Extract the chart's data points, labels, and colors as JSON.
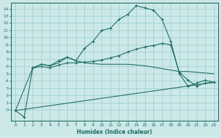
{
  "xlabel": "Humidex (Indice chaleur)",
  "bg_color": "#cce8e8",
  "grid_color": "#99cccc",
  "line_color": "#1a6b60",
  "xlim": [
    -0.5,
    23.5
  ],
  "ylim": [
    -1.5,
    14.8
  ],
  "xticks": [
    0,
    1,
    2,
    3,
    4,
    5,
    6,
    7,
    8,
    9,
    10,
    11,
    12,
    13,
    14,
    15,
    16,
    17,
    18,
    19,
    20,
    21,
    22,
    23
  ],
  "yticks": [
    0,
    1,
    2,
    3,
    4,
    5,
    6,
    7,
    8,
    9,
    10,
    11,
    12,
    13,
    14
  ],
  "line1_x": [
    0,
    1,
    2,
    3,
    4,
    5,
    6,
    7,
    8,
    9,
    10,
    11,
    12,
    13,
    14,
    15,
    16,
    17,
    18,
    19,
    20,
    21,
    22,
    23
  ],
  "line1_y": [
    -0.1,
    -1.0,
    5.8,
    6.3,
    6.1,
    6.8,
    7.3,
    6.8,
    8.5,
    9.5,
    11.0,
    11.3,
    12.5,
    13.2,
    14.4,
    14.1,
    13.8,
    12.5,
    9.5,
    5.0,
    3.3,
    3.7,
    4.1,
    3.8
  ],
  "line2_x": [
    2,
    3,
    4,
    5,
    6,
    7,
    8,
    9,
    10,
    11,
    12,
    13,
    14,
    15,
    16,
    17,
    18,
    19,
    20,
    21,
    22,
    23
  ],
  "line2_y": [
    5.8,
    6.0,
    5.8,
    6.2,
    6.5,
    6.5,
    6.6,
    6.7,
    6.9,
    7.2,
    7.5,
    8.0,
    8.4,
    8.7,
    8.9,
    9.2,
    9.0,
    5.2,
    4.1,
    3.3,
    3.7,
    3.8
  ],
  "line3_x": [
    0,
    23
  ],
  "line3_y": [
    -0.1,
    3.8
  ],
  "line4_x": [
    0,
    2,
    3,
    4,
    5,
    6,
    7,
    8,
    9,
    10,
    11,
    12,
    13,
    14,
    15,
    16,
    17,
    18,
    19,
    20,
    21,
    22,
    23
  ],
  "line4_y": [
    -0.1,
    5.8,
    6.3,
    6.1,
    6.5,
    7.3,
    6.8,
    6.5,
    6.4,
    6.3,
    6.3,
    6.3,
    6.3,
    6.2,
    6.1,
    5.9,
    5.7,
    5.5,
    5.3,
    5.3,
    5.2,
    5.1,
    5.0
  ]
}
